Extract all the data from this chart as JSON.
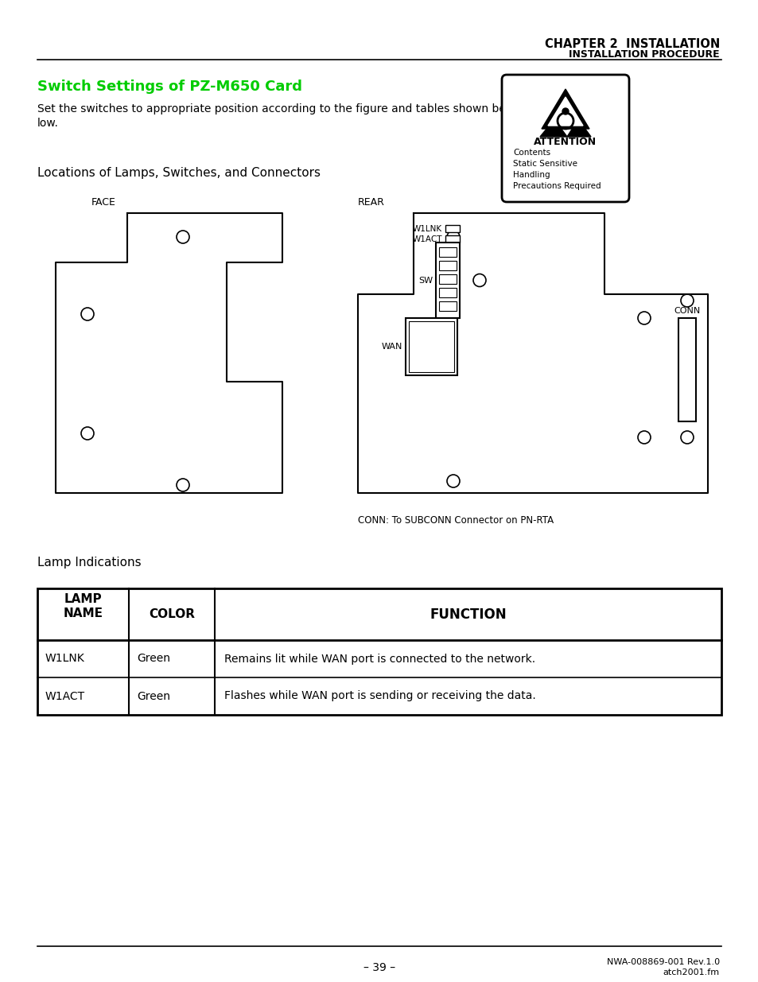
{
  "page_title_line1": "CHAPTER 2  INSTALLATION",
  "page_title_line2": "INSTALLATION PROCEDURE",
  "section_title": "Switch Settings of PZ-M650 Card",
  "section_title_color": "#00CC00",
  "body_text_line1": "Set the switches to appropriate position according to the figure and tables shown be-",
  "body_text_line2": "low.",
  "subsection1": "Locations of Lamps, Switches, and Connectors",
  "face_label": "FACE",
  "rear_label": "REAR",
  "w1lnk_label": "W1LNK",
  "w1act_label": "W1ACT",
  "sw_label": "SW",
  "wan_label": "WAN",
  "conn_label": "CONN",
  "conn_note": "CONN: To SUBCONN Connector on PN-RTA",
  "attention_title": "ATTENTION",
  "attention_lines": [
    "Contents",
    "Static Sensitive",
    "Handling",
    "Precautions Required"
  ],
  "subsection2": "Lamp Indications",
  "table_rows": [
    [
      "W1LNK",
      "Green",
      "Remains lit while WAN port is connected to the network."
    ],
    [
      "W1ACT",
      "Green",
      "Flashes while WAN port is sending or receiving the data."
    ]
  ],
  "page_number": "– 39 –",
  "footer_right_line1": "NWA-008869-001 Rev.1.0",
  "footer_right_line2": "atch2001.fm",
  "bg_color": "#ffffff"
}
